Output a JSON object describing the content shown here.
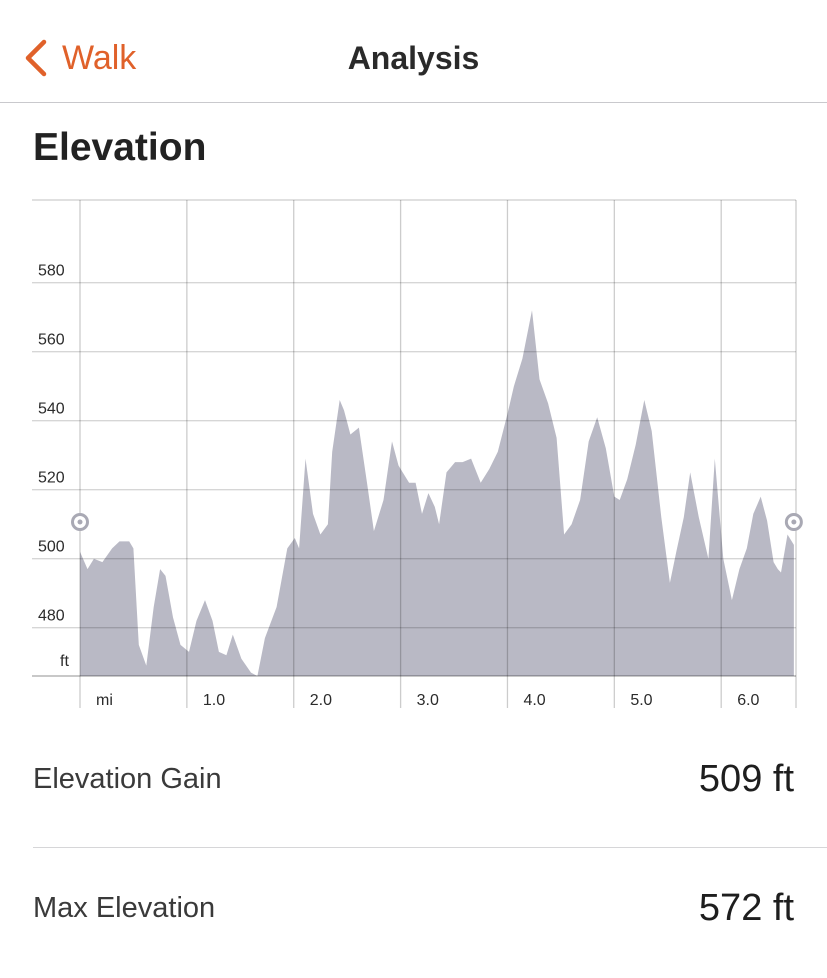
{
  "nav": {
    "back_label": "Walk",
    "title": "Analysis",
    "accent_color": "#e0612a",
    "back_icon": "chevron-left-icon"
  },
  "section": {
    "title": "Elevation"
  },
  "chart_data": {
    "type": "area",
    "xlabel": "mi",
    "ylabel": "ft",
    "x_ticks": [
      "1.0",
      "2.0",
      "3.0",
      "4.0",
      "5.0",
      "6.0"
    ],
    "y_ticks": [
      "480",
      "500",
      "520",
      "540",
      "560",
      "580"
    ],
    "xlim": [
      0,
      6.7
    ],
    "ylim": [
      466,
      600
    ],
    "grid": true,
    "fill_color": "#b9b9c5",
    "series": [
      {
        "x": [
          0.0,
          0.07,
          0.13,
          0.21,
          0.3,
          0.37,
          0.46,
          0.5,
          0.55,
          0.62,
          0.69,
          0.75,
          0.8,
          0.87,
          0.94,
          1.02,
          1.09,
          1.17,
          1.24,
          1.3,
          1.37,
          1.43,
          1.51,
          1.6,
          1.66,
          1.73,
          1.84,
          1.94,
          2.01,
          2.05,
          2.11,
          2.18,
          2.25,
          2.32,
          2.36,
          2.43,
          2.47,
          2.53,
          2.61,
          2.69,
          2.75,
          2.84,
          2.92,
          2.98,
          3.02,
          3.08,
          3.14,
          3.2,
          3.26,
          3.32,
          3.36,
          3.43,
          3.51,
          3.58,
          3.66,
          3.75,
          3.83,
          3.91,
          4.0,
          4.06,
          4.14,
          4.23,
          4.3,
          4.38,
          4.46,
          4.53,
          4.6,
          4.68,
          4.76,
          4.84,
          4.92,
          5.0,
          5.05,
          5.12,
          5.2,
          5.28,
          5.35,
          5.44,
          5.52,
          5.58,
          5.65,
          5.71,
          5.79,
          5.88,
          5.94,
          6.02,
          6.1,
          6.17,
          6.24,
          6.3,
          6.37,
          6.43,
          6.49,
          6.53,
          6.56,
          6.62,
          6.68
        ],
        "y": [
          502,
          497,
          500,
          499,
          503,
          505,
          505,
          503,
          475,
          469,
          486,
          497,
          495,
          483,
          475,
          473,
          482,
          488,
          482,
          473,
          472,
          478,
          471,
          467,
          466,
          477,
          486,
          503,
          506,
          503,
          529,
          513,
          507,
          510,
          531,
          546,
          543,
          536,
          538,
          521,
          508,
          517,
          534,
          527,
          525,
          522,
          522,
          513,
          519,
          515,
          510,
          525,
          528,
          528,
          529,
          522,
          526,
          531,
          542,
          550,
          558,
          572,
          552,
          545,
          535,
          507,
          510,
          517,
          534,
          541,
          532,
          518,
          517,
          523,
          533,
          546,
          537,
          512,
          493,
          502,
          512,
          525,
          512,
          500,
          529,
          500,
          488,
          497,
          503,
          513,
          518,
          511,
          499,
          497,
          496,
          507,
          504
        ]
      }
    ]
  },
  "stats": [
    {
      "label": "Elevation Gain",
      "value": "509 ft"
    },
    {
      "label": "Max Elevation",
      "value": "572 ft"
    }
  ]
}
